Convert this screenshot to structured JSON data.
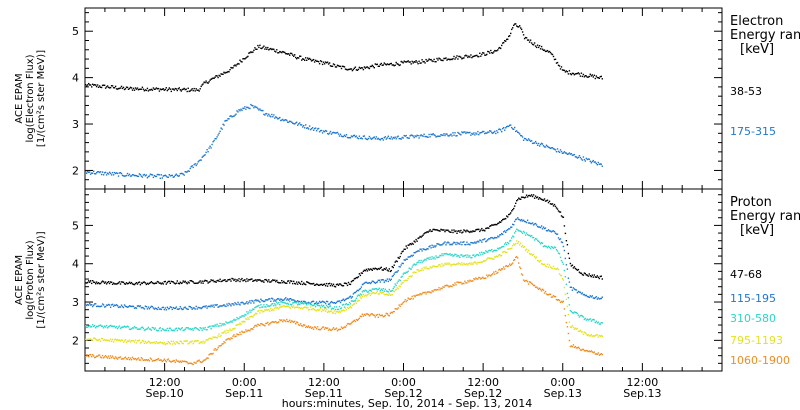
{
  "chart_data": [
    {
      "type": "scatter",
      "panel": "electron",
      "ylabel_lines": [
        "ACE EPAM",
        "log(Electron Flux)",
        "[1/(cm²s ster MeV)]"
      ],
      "legend_title_lines": [
        "Electron",
        "Energy range",
        "[keV]"
      ],
      "ylim": [
        1.6,
        5.5
      ],
      "yticks": [
        2,
        3,
        4,
        5
      ],
      "xlim": [
        0,
        96
      ],
      "series": [
        {
          "name": "38-53",
          "color": "#000000",
          "points": [
            [
              0,
              3.85
            ],
            [
              3,
              3.82
            ],
            [
              6,
              3.78
            ],
            [
              9,
              3.77
            ],
            [
              12,
              3.76
            ],
            [
              15,
              3.75
            ],
            [
              17,
              3.75
            ],
            [
              18,
              3.9
            ],
            [
              20,
              4.05
            ],
            [
              22,
              4.2
            ],
            [
              24,
              4.45
            ],
            [
              26,
              4.68
            ],
            [
              28,
              4.62
            ],
            [
              30,
              4.55
            ],
            [
              32,
              4.45
            ],
            [
              34,
              4.38
            ],
            [
              36,
              4.33
            ],
            [
              38,
              4.25
            ],
            [
              40,
              4.2
            ],
            [
              42,
              4.22
            ],
            [
              44,
              4.28
            ],
            [
              46,
              4.3
            ],
            [
              48,
              4.33
            ],
            [
              50,
              4.35
            ],
            [
              52,
              4.38
            ],
            [
              54,
              4.42
            ],
            [
              56,
              4.45
            ],
            [
              58,
              4.48
            ],
            [
              60,
              4.52
            ],
            [
              62,
              4.6
            ],
            [
              63,
              4.75
            ],
            [
              64,
              4.95
            ],
            [
              64.5,
              5.15
            ],
            [
              65.5,
              5.1
            ],
            [
              66,
              4.9
            ],
            [
              67,
              4.8
            ],
            [
              68,
              4.7
            ],
            [
              70,
              4.55
            ],
            [
              71,
              4.35
            ],
            [
              72,
              4.15
            ],
            [
              74,
              4.1
            ],
            [
              76,
              4.05
            ],
            [
              78,
              4.0
            ]
          ]
        },
        {
          "name": "175-315",
          "color": "#1f77d0",
          "points": [
            [
              0,
              1.98
            ],
            [
              3,
              1.95
            ],
            [
              6,
              1.92
            ],
            [
              9,
              1.9
            ],
            [
              12,
              1.88
            ],
            [
              14,
              1.9
            ],
            [
              15,
              1.95
            ],
            [
              17,
              2.2
            ],
            [
              19,
              2.55
            ],
            [
              21,
              3.05
            ],
            [
              23,
              3.3
            ],
            [
              25,
              3.4
            ],
            [
              27,
              3.25
            ],
            [
              30,
              3.1
            ],
            [
              33,
              2.97
            ],
            [
              36,
              2.85
            ],
            [
              40,
              2.75
            ],
            [
              44,
              2.7
            ],
            [
              48,
              2.73
            ],
            [
              52,
              2.77
            ],
            [
              56,
              2.8
            ],
            [
              60,
              2.82
            ],
            [
              62,
              2.85
            ],
            [
              63,
              2.9
            ],
            [
              64,
              3.0
            ],
            [
              65,
              2.85
            ],
            [
              66,
              2.7
            ],
            [
              68,
              2.6
            ],
            [
              70,
              2.5
            ],
            [
              72,
              2.4
            ],
            [
              74,
              2.32
            ],
            [
              76,
              2.22
            ],
            [
              78,
              2.12
            ]
          ]
        }
      ]
    },
    {
      "type": "scatter",
      "panel": "proton",
      "ylabel_lines": [
        "ACE EPAM",
        "log(Proton Flux)",
        "[1/(cm²s ster MeV)]"
      ],
      "legend_title_lines": [
        "Proton",
        "Energy range",
        "[keV]"
      ],
      "ylim": [
        1.2,
        5.95
      ],
      "yticks": [
        2,
        3,
        4,
        5
      ],
      "xlim": [
        0,
        96
      ],
      "series": [
        {
          "name": "47-68",
          "color": "#000000",
          "points": [
            [
              0,
              3.55
            ],
            [
              6,
              3.5
            ],
            [
              12,
              3.52
            ],
            [
              18,
              3.55
            ],
            [
              22,
              3.6
            ],
            [
              26,
              3.58
            ],
            [
              30,
              3.55
            ],
            [
              34,
              3.5
            ],
            [
              38,
              3.45
            ],
            [
              40,
              3.5
            ],
            [
              42,
              3.85
            ],
            [
              44,
              3.9
            ],
            [
              46,
              3.85
            ],
            [
              48,
              4.4
            ],
            [
              50,
              4.65
            ],
            [
              52,
              4.9
            ],
            [
              56,
              4.85
            ],
            [
              60,
              4.9
            ],
            [
              62,
              5.05
            ],
            [
              64,
              5.3
            ],
            [
              65,
              5.7
            ],
            [
              67,
              5.8
            ],
            [
              69,
              5.7
            ],
            [
              71,
              5.5
            ],
            [
              72,
              5.2
            ],
            [
              73,
              4.0
            ],
            [
              75,
              3.75
            ],
            [
              78,
              3.65
            ]
          ]
        },
        {
          "name": "115-195",
          "color": "#1f77d0",
          "points": [
            [
              0,
              2.95
            ],
            [
              6,
              2.9
            ],
            [
              12,
              2.85
            ],
            [
              18,
              2.88
            ],
            [
              22,
              2.95
            ],
            [
              26,
              3.05
            ],
            [
              30,
              3.1
            ],
            [
              34,
              3.0
            ],
            [
              38,
              3.0
            ],
            [
              40,
              3.15
            ],
            [
              42,
              3.5
            ],
            [
              44,
              3.55
            ],
            [
              46,
              3.6
            ],
            [
              48,
              4.1
            ],
            [
              50,
              4.35
            ],
            [
              54,
              4.55
            ],
            [
              58,
              4.55
            ],
            [
              62,
              4.7
            ],
            [
              64,
              4.95
            ],
            [
              65,
              5.2
            ],
            [
              67,
              5.1
            ],
            [
              69,
              4.95
            ],
            [
              71,
              4.8
            ],
            [
              72,
              4.5
            ],
            [
              73,
              3.4
            ],
            [
              75,
              3.2
            ],
            [
              78,
              3.1
            ]
          ]
        },
        {
          "name": "310-580",
          "color": "#2bd6c8",
          "points": [
            [
              0,
              2.4
            ],
            [
              6,
              2.35
            ],
            [
              12,
              2.3
            ],
            [
              18,
              2.32
            ],
            [
              22,
              2.5
            ],
            [
              26,
              2.9
            ],
            [
              30,
              3.0
            ],
            [
              34,
              2.95
            ],
            [
              38,
              2.85
            ],
            [
              40,
              3.0
            ],
            [
              42,
              3.3
            ],
            [
              44,
              3.35
            ],
            [
              46,
              3.3
            ],
            [
              48,
              3.75
            ],
            [
              50,
              4.05
            ],
            [
              54,
              4.25
            ],
            [
              58,
              4.2
            ],
            [
              62,
              4.4
            ],
            [
              64,
              4.6
            ],
            [
              65,
              4.9
            ],
            [
              67,
              4.75
            ],
            [
              69,
              4.5
            ],
            [
              71,
              4.4
            ],
            [
              72,
              4.0
            ],
            [
              73,
              2.8
            ],
            [
              75,
              2.6
            ],
            [
              78,
              2.45
            ]
          ]
        },
        {
          "name": "795-1193",
          "color": "#e4e21e",
          "points": [
            [
              0,
              2.05
            ],
            [
              6,
              2.0
            ],
            [
              12,
              1.95
            ],
            [
              18,
              1.98
            ],
            [
              22,
              2.3
            ],
            [
              26,
              2.75
            ],
            [
              30,
              2.9
            ],
            [
              34,
              2.85
            ],
            [
              38,
              2.75
            ],
            [
              40,
              2.9
            ],
            [
              42,
              3.2
            ],
            [
              44,
              3.25
            ],
            [
              46,
              3.2
            ],
            [
              48,
              3.55
            ],
            [
              50,
              3.85
            ],
            [
              54,
              4.0
            ],
            [
              58,
              4.0
            ],
            [
              62,
              4.2
            ],
            [
              64,
              4.4
            ],
            [
              65,
              4.6
            ],
            [
              67,
              4.3
            ],
            [
              69,
              4.0
            ],
            [
              71,
              3.9
            ],
            [
              72,
              3.6
            ],
            [
              73,
              2.4
            ],
            [
              75,
              2.2
            ],
            [
              78,
              2.1
            ]
          ]
        },
        {
          "name": "1060-1900",
          "color": "#f08c1e",
          "points": [
            [
              0,
              1.62
            ],
            [
              6,
              1.55
            ],
            [
              12,
              1.5
            ],
            [
              16,
              1.42
            ],
            [
              18,
              1.5
            ],
            [
              20,
              1.85
            ],
            [
              22,
              2.1
            ],
            [
              26,
              2.4
            ],
            [
              30,
              2.55
            ],
            [
              34,
              2.35
            ],
            [
              38,
              2.3
            ],
            [
              40,
              2.45
            ],
            [
              42,
              2.7
            ],
            [
              44,
              2.65
            ],
            [
              46,
              2.7
            ],
            [
              48,
              3.05
            ],
            [
              52,
              3.3
            ],
            [
              56,
              3.5
            ],
            [
              60,
              3.65
            ],
            [
              62,
              3.8
            ],
            [
              64,
              4.0
            ],
            [
              65,
              4.2
            ],
            [
              66,
              3.6
            ],
            [
              68,
              3.4
            ],
            [
              70,
              3.2
            ],
            [
              72,
              3.0
            ],
            [
              73,
              1.9
            ],
            [
              75,
              1.75
            ],
            [
              78,
              1.65
            ]
          ]
        }
      ]
    }
  ],
  "x_axis": {
    "ticks": [
      {
        "hour": 12,
        "line1": "12:00",
        "line2": "Sep.10"
      },
      {
        "hour": 24,
        "line1": "0:00",
        "line2": "Sep.11"
      },
      {
        "hour": 36,
        "line1": "12:00",
        "line2": "Sep.11"
      },
      {
        "hour": 48,
        "line1": "0:00",
        "line2": "Sep.12"
      },
      {
        "hour": 60,
        "line1": "12:00",
        "line2": "Sep.12"
      },
      {
        "hour": 72,
        "line1": "0:00",
        "line2": "Sep.13"
      },
      {
        "hour": 84,
        "line1": "12:00",
        "line2": "Sep.13"
      }
    ],
    "minor_step_hours": 3,
    "label": "hours:minutes, Sep. 10, 2014 - Sep. 13, 2014"
  }
}
